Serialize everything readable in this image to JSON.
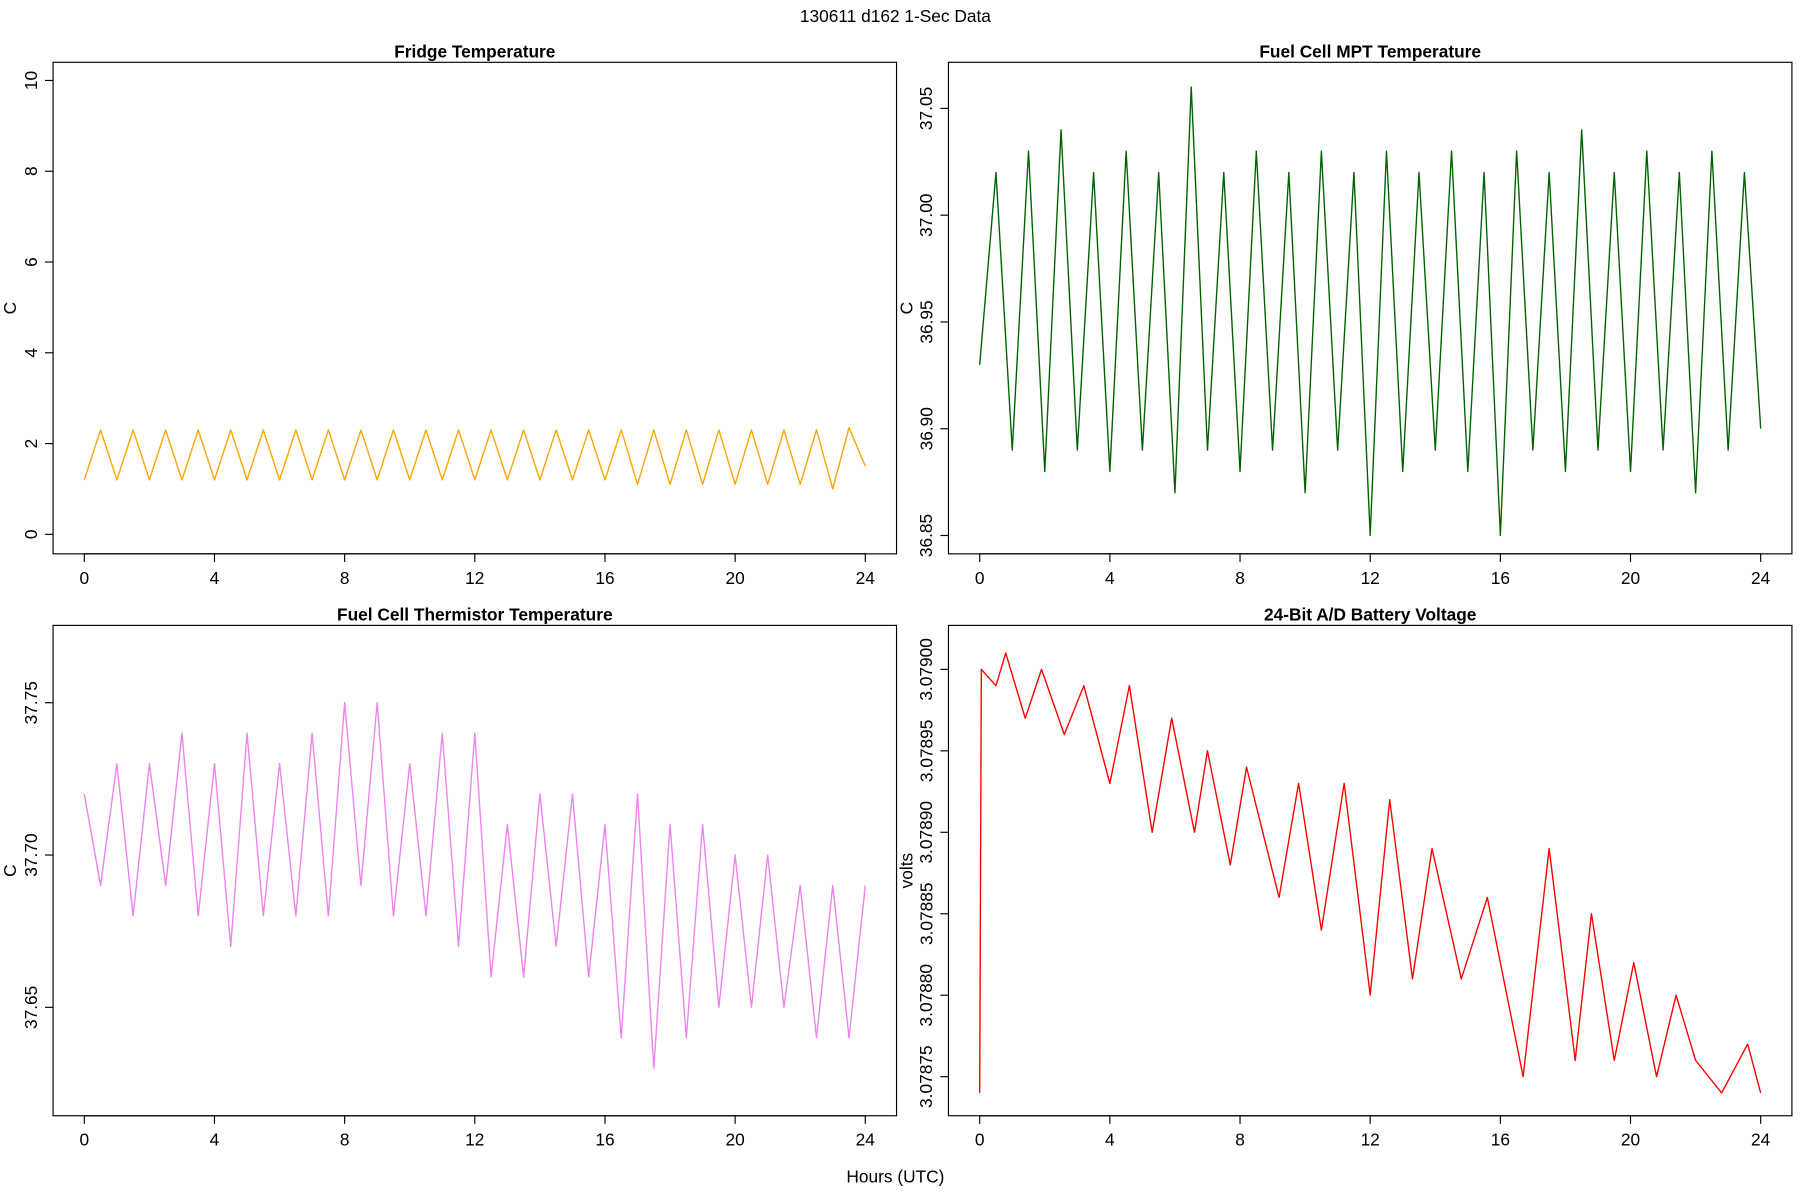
{
  "title": "130611   d162   1-Sec Data",
  "x_label": "Hours (UTC)",
  "chart_data": [
    {
      "type": "line",
      "title": "Fridge Temperature",
      "y_label": "C",
      "color": "#ffa500",
      "xlim": [
        -0.96,
        24.96
      ],
      "xticks": [
        0,
        4,
        8,
        12,
        16,
        20,
        24
      ],
      "ylim": [
        -0.43,
        10.4
      ],
      "yticks": [
        0,
        2,
        4,
        6,
        8,
        10
      ],
      "x": [
        0,
        0.5,
        1,
        1.5,
        2,
        2.5,
        3,
        3.5,
        4,
        4.5,
        5,
        5.5,
        6,
        6.5,
        7,
        7.5,
        8,
        8.5,
        9,
        9.5,
        10,
        10.5,
        11,
        11.5,
        12,
        12.5,
        13,
        13.5,
        14,
        14.5,
        15,
        15.5,
        16,
        16.5,
        17,
        17.5,
        18,
        18.5,
        19,
        19.5,
        20,
        20.5,
        21,
        21.5,
        22,
        22.5,
        23,
        23.5,
        24
      ],
      "values": [
        1.2,
        2.3,
        1.2,
        2.3,
        1.2,
        2.3,
        1.2,
        2.3,
        1.2,
        2.3,
        1.2,
        2.3,
        1.2,
        2.3,
        1.2,
        2.3,
        1.2,
        2.3,
        1.2,
        2.3,
        1.2,
        2.3,
        1.2,
        2.3,
        1.2,
        2.3,
        1.2,
        2.3,
        1.2,
        2.3,
        1.2,
        2.3,
        1.2,
        2.3,
        1.1,
        2.3,
        1.1,
        2.3,
        1.1,
        2.3,
        1.1,
        2.3,
        1.1,
        2.3,
        1.1,
        2.3,
        1.0,
        2.35,
        1.5
      ]
    },
    {
      "type": "line",
      "title": "Fuel Cell MPT Temperature",
      "y_label": "C",
      "color": "#006400",
      "xlim": [
        -0.96,
        24.96
      ],
      "xticks": [
        0,
        4,
        8,
        12,
        16,
        20,
        24
      ],
      "ylim": [
        36.8414,
        37.0716
      ],
      "yticks": [
        {
          "value": 36.85,
          "label": "36.85"
        },
        {
          "value": 36.9,
          "label": "36.90"
        },
        {
          "value": 36.95,
          "label": "36.95"
        },
        {
          "value": 37,
          "label": "37.00"
        },
        {
          "value": 37.05,
          "label": "37.05"
        }
      ],
      "x": [
        0,
        0.5,
        1,
        1.5,
        2,
        2.5,
        3,
        3.5,
        4,
        4.5,
        5,
        5.5,
        6,
        6.5,
        7,
        7.5,
        8,
        8.5,
        9,
        9.5,
        10,
        10.5,
        11,
        11.5,
        12,
        12.5,
        13,
        13.5,
        14,
        14.5,
        15,
        15.5,
        16,
        16.5,
        17,
        17.5,
        18,
        18.5,
        19,
        19.5,
        20,
        20.5,
        21,
        21.5,
        22,
        22.5,
        23,
        23.5,
        24
      ],
      "values": [
        36.93,
        37.02,
        36.89,
        37.03,
        36.88,
        37.04,
        36.89,
        37.02,
        36.88,
        37.03,
        36.89,
        37.02,
        36.87,
        37.06,
        36.89,
        37.02,
        36.88,
        37.03,
        36.89,
        37.02,
        36.87,
        37.03,
        36.89,
        37.02,
        36.85,
        37.03,
        36.88,
        37.02,
        36.89,
        37.03,
        36.88,
        37.02,
        36.85,
        37.03,
        36.89,
        37.02,
        36.88,
        37.04,
        36.89,
        37.02,
        36.88,
        37.03,
        36.89,
        37.02,
        36.87,
        37.03,
        36.89,
        37.02,
        36.9
      ]
    },
    {
      "type": "line",
      "title": "Fuel Cell Thermistor Temperature",
      "y_label": "C",
      "color": "#ee82ee",
      "xlim": [
        -0.96,
        24.96
      ],
      "xticks": [
        0,
        4,
        8,
        12,
        16,
        20,
        24
      ],
      "ylim": [
        37.6144,
        37.7754
      ],
      "yticks": [
        {
          "value": 37.65,
          "label": "37.65"
        },
        {
          "value": 37.7,
          "label": "37.70"
        },
        {
          "value": 37.75,
          "label": "37.75"
        }
      ],
      "x": [
        0,
        0.5,
        1,
        1.5,
        2,
        2.5,
        3,
        3.5,
        4,
        4.5,
        5,
        5.5,
        6,
        6.5,
        7,
        7.5,
        8,
        8.5,
        9,
        9.5,
        10,
        10.5,
        11,
        11.5,
        12,
        12.5,
        13,
        13.5,
        14,
        14.5,
        15,
        15.5,
        16,
        16.5,
        17,
        17.5,
        18,
        18.5,
        19,
        19.5,
        20,
        20.5,
        21,
        21.5,
        22,
        22.5,
        23,
        23.5,
        24
      ],
      "values": [
        37.72,
        37.69,
        37.73,
        37.68,
        37.73,
        37.69,
        37.74,
        37.68,
        37.73,
        37.67,
        37.74,
        37.68,
        37.73,
        37.68,
        37.74,
        37.68,
        37.75,
        37.69,
        37.75,
        37.68,
        37.73,
        37.68,
        37.74,
        37.67,
        37.74,
        37.66,
        37.71,
        37.66,
        37.72,
        37.67,
        37.72,
        37.66,
        37.71,
        37.64,
        37.72,
        37.63,
        37.71,
        37.64,
        37.71,
        37.65,
        37.7,
        37.65,
        37.7,
        37.65,
        37.69,
        37.64,
        37.69,
        37.64,
        37.69
      ]
    },
    {
      "type": "line",
      "title": "24-Bit A/D Battery Voltage",
      "y_label": "volts",
      "color": "#ff0000",
      "xlim": [
        -0.96,
        24.96
      ],
      "xticks": [
        0,
        4,
        8,
        12,
        16,
        20,
        24
      ],
      "ylim": [
        3.078726,
        3.079027
      ],
      "yticks": [
        {
          "value": 3.07875,
          "label": "3.07875"
        },
        {
          "value": 3.0788,
          "label": "3.07880"
        },
        {
          "value": 3.07885,
          "label": "3.07885"
        },
        {
          "value": 3.0789,
          "label": "3.07890"
        },
        {
          "value": 3.07895,
          "label": "3.07895"
        },
        {
          "value": 3.079,
          "label": "3.07900"
        }
      ],
      "x": [
        0,
        0.05,
        0.5,
        0.8,
        1.4,
        1.9,
        2.6,
        3.2,
        4,
        4.6,
        5.3,
        5.9,
        6.6,
        7,
        7.7,
        8.2,
        9.2,
        9.8,
        10.5,
        11.2,
        12,
        12.6,
        13.3,
        13.9,
        14.8,
        15.6,
        16.7,
        17.5,
        18.3,
        18.8,
        19.5,
        20.1,
        20.8,
        21.4,
        22,
        22.8,
        23.6,
        24
      ],
      "values": [
        3.07874,
        3.079,
        3.07899,
        3.07901,
        3.07897,
        3.079,
        3.07896,
        3.07899,
        3.07893,
        3.07899,
        3.0789,
        3.07897,
        3.0789,
        3.07895,
        3.07888,
        3.07894,
        3.07886,
        3.07893,
        3.07884,
        3.07893,
        3.0788,
        3.07892,
        3.07881,
        3.07889,
        3.07881,
        3.07886,
        3.07875,
        3.07889,
        3.07876,
        3.07885,
        3.07876,
        3.07882,
        3.07875,
        3.0788,
        3.07876,
        3.07874,
        3.07877,
        3.07874
      ]
    }
  ]
}
